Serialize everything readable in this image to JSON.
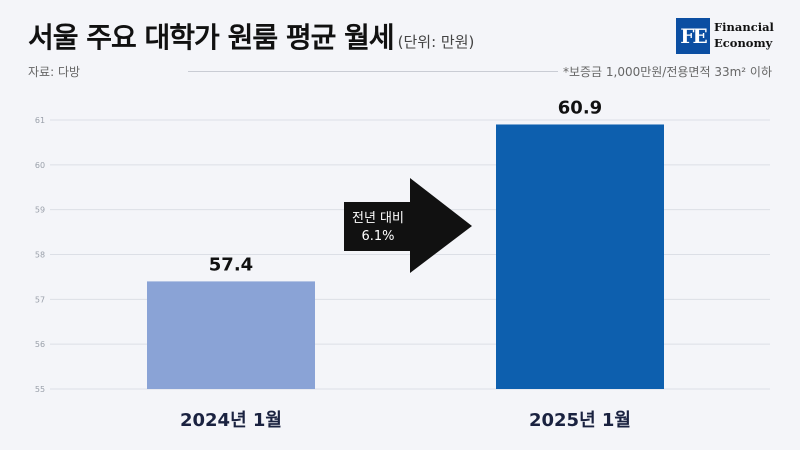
{
  "header": {
    "title": "서울 주요 대학가 원룸 평균 월세",
    "unit": "(단위: 만원)",
    "source": "자료: 다방",
    "note": "*보증금 1,000만원/전용면적 33m² 이하"
  },
  "logo": {
    "mark": "FE",
    "line1": "Financial",
    "line2": "Economy"
  },
  "colors": {
    "bar_2024": "#8aa3d6",
    "bar_2025": "#0d5fae",
    "arrow": "#111111",
    "grid": "#dcdfe6"
  },
  "annotation": {
    "line1": "전년 대비",
    "line2": "6.1%"
  },
  "chart_data": {
    "type": "bar",
    "categories": [
      "2024년 1월",
      "2025년 1월"
    ],
    "values": [
      57.4,
      60.9
    ],
    "ylim": [
      55,
      61
    ],
    "yticks": [
      55,
      56,
      57,
      58,
      59,
      60,
      61
    ],
    "grid": true,
    "title": "서울 주요 대학가 원룸 평균 월세",
    "ylabel": "",
    "xlabel": ""
  }
}
